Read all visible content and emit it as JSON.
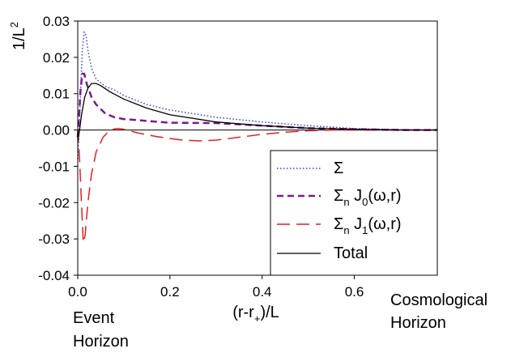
{
  "chart_data": {
    "type": "line",
    "ylabel_base": "1/L",
    "ylabel_sup": "2",
    "xlabel_pre": "(r-r",
    "xlabel_sub": "+",
    "xlabel_post": ")/L",
    "xlim": [
      0,
      0.78
    ],
    "ylim": [
      -0.04,
      0.03
    ],
    "xticks": [
      0.0,
      0.2,
      0.4,
      0.6
    ],
    "xtick_labels": [
      "0.0",
      "0.2",
      "0.4",
      "0.6"
    ],
    "yticks": [
      0.03,
      0.02,
      0.01,
      0.0,
      -0.01,
      -0.02,
      -0.03,
      -0.04
    ],
    "ytick_labels": [
      "0.03",
      "0.02",
      "0.01",
      "0.00",
      "-0.01",
      "-0.02",
      "-0.03",
      "-0.04"
    ],
    "annotations": {
      "left_line1": "Event",
      "left_line2": "Horizon",
      "right_line1": "Cosmological",
      "right_line2": "Horizon"
    },
    "legend_position": "lower-right",
    "series": [
      {
        "name": "Σ",
        "legend_parts": {
          "a": "Σ"
        },
        "color": "#3344cc",
        "style": "dotted",
        "points": [
          [
            0.0,
            -0.008
          ],
          [
            0.003,
            0.0
          ],
          [
            0.006,
            0.01
          ],
          [
            0.01,
            0.022
          ],
          [
            0.014,
            0.027
          ],
          [
            0.018,
            0.026
          ],
          [
            0.022,
            0.022
          ],
          [
            0.03,
            0.017
          ],
          [
            0.04,
            0.014
          ],
          [
            0.06,
            0.012
          ],
          [
            0.08,
            0.011
          ],
          [
            0.1,
            0.0095
          ],
          [
            0.15,
            0.007
          ],
          [
            0.2,
            0.0055
          ],
          [
            0.3,
            0.0035
          ],
          [
            0.4,
            0.0022
          ],
          [
            0.5,
            0.0012
          ],
          [
            0.6,
            0.0004
          ],
          [
            0.7,
            0.0001
          ],
          [
            0.78,
            0.0
          ]
        ]
      },
      {
        "name": "Σn J0(ω,r)",
        "legend_parts": {
          "a": "Σ",
          "sub": "n",
          "b": " J",
          "sub2": "0",
          "c": "(ω,r)"
        },
        "color": "#7a1a8c",
        "style": "dashed",
        "points": [
          [
            0.0,
            -0.002
          ],
          [
            0.003,
            0.004
          ],
          [
            0.006,
            0.011
          ],
          [
            0.01,
            0.0155
          ],
          [
            0.014,
            0.0155
          ],
          [
            0.02,
            0.0125
          ],
          [
            0.03,
            0.009
          ],
          [
            0.04,
            0.007
          ],
          [
            0.06,
            0.0045
          ],
          [
            0.08,
            0.0035
          ],
          [
            0.1,
            0.003
          ],
          [
            0.15,
            0.0025
          ],
          [
            0.2,
            0.002
          ],
          [
            0.3,
            0.0019
          ],
          [
            0.4,
            0.0012
          ],
          [
            0.5,
            0.0005
          ],
          [
            0.6,
            0.0002
          ],
          [
            0.7,
            0.0
          ],
          [
            0.78,
            0.0
          ]
        ]
      },
      {
        "name": "Σn J1(ω,r)",
        "legend_parts": {
          "a": "Σ",
          "sub": "n",
          "b": " J",
          "sub2": "1",
          "c": "(ω,r)"
        },
        "color": "#dd2222",
        "style": "longdash",
        "points": [
          [
            0.0,
            0.0
          ],
          [
            0.004,
            -0.008
          ],
          [
            0.008,
            -0.02
          ],
          [
            0.012,
            -0.031
          ],
          [
            0.016,
            -0.029
          ],
          [
            0.022,
            -0.02
          ],
          [
            0.03,
            -0.012
          ],
          [
            0.04,
            -0.006
          ],
          [
            0.055,
            -0.002
          ],
          [
            0.07,
            0.0
          ],
          [
            0.085,
            0.0004
          ],
          [
            0.1,
            0.0002
          ],
          [
            0.13,
            -0.0008
          ],
          [
            0.17,
            -0.0018
          ],
          [
            0.22,
            -0.0027
          ],
          [
            0.26,
            -0.003
          ],
          [
            0.3,
            -0.0028
          ],
          [
            0.35,
            -0.002
          ],
          [
            0.4,
            -0.0012
          ],
          [
            0.45,
            -0.0006
          ],
          [
            0.5,
            -0.0002
          ],
          [
            0.55,
            0.0
          ],
          [
            0.6,
            0.0
          ],
          [
            0.78,
            0.0
          ]
        ]
      },
      {
        "name": "Total",
        "legend_parts": {
          "a": "Total"
        },
        "color": "#000000",
        "style": "solid",
        "points": [
          [
            0.0,
            -0.003
          ],
          [
            0.004,
            0.0
          ],
          [
            0.008,
            0.004
          ],
          [
            0.015,
            0.009
          ],
          [
            0.022,
            0.0115
          ],
          [
            0.03,
            0.0128
          ],
          [
            0.04,
            0.0128
          ],
          [
            0.05,
            0.0122
          ],
          [
            0.07,
            0.0105
          ],
          [
            0.1,
            0.0085
          ],
          [
            0.15,
            0.006
          ],
          [
            0.2,
            0.0042
          ],
          [
            0.3,
            0.0022
          ],
          [
            0.4,
            0.0012
          ],
          [
            0.5,
            0.0005
          ],
          [
            0.6,
            0.0002
          ],
          [
            0.7,
            0.0
          ],
          [
            0.78,
            0.0
          ]
        ]
      }
    ]
  }
}
